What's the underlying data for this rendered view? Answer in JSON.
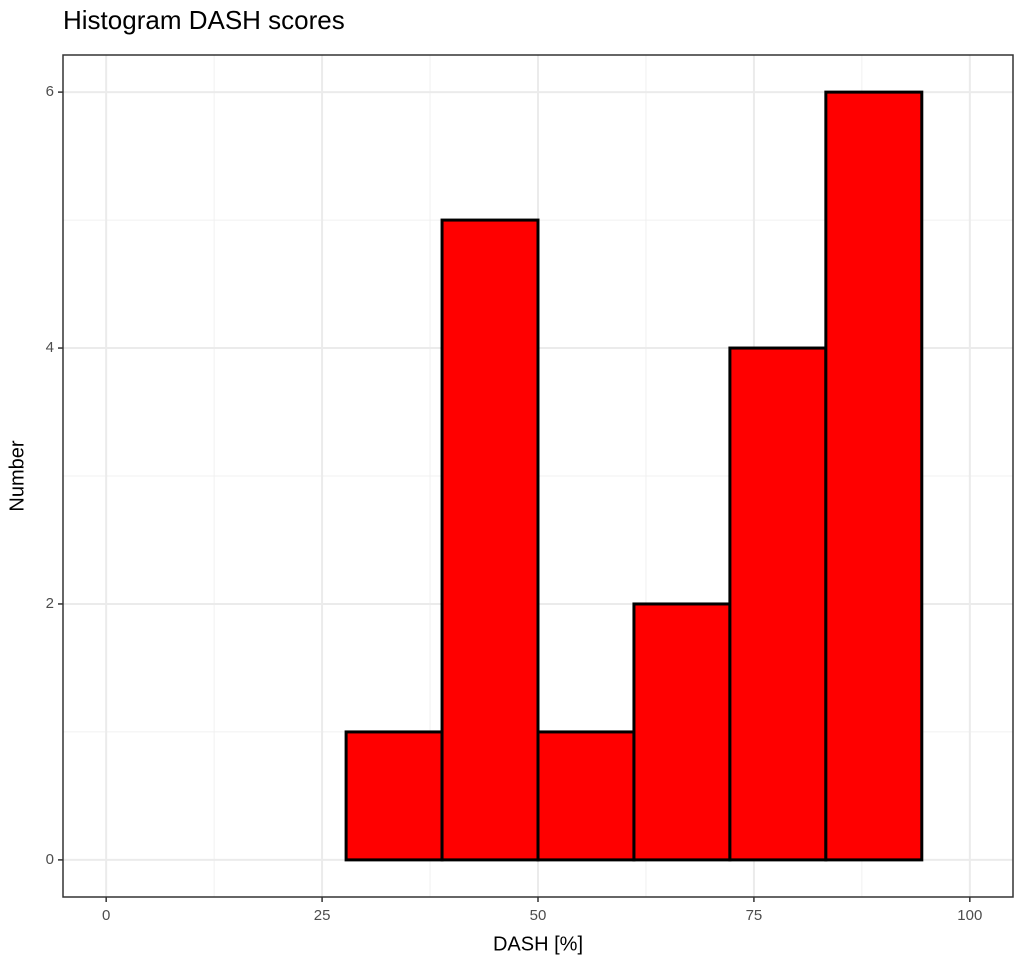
{
  "chart_data": {
    "type": "histogram",
    "title": "Histogram DASH scores",
    "x_label": "DASH [%]",
    "y_label": "Number",
    "bins": [
      5.56,
      16.67,
      27.78,
      38.89,
      50,
      61.11,
      72.22,
      83.33,
      94.44
    ],
    "values": [
      0,
      0,
      1,
      5,
      1,
      2,
      4,
      6
    ],
    "color": "#ff0000",
    "edge_color": "#000000",
    "xlim": [
      -5,
      105
    ],
    "ylim": [
      -0.29,
      6.29
    ],
    "xticks": [
      0,
      25,
      50,
      75,
      100
    ],
    "yticks": [
      0,
      2,
      4,
      6
    ],
    "x_minor_grid": [
      12.5,
      37.5,
      62.5,
      87.5
    ],
    "y_minor_grid": [
      1,
      3,
      5
    ],
    "grid": true
  }
}
